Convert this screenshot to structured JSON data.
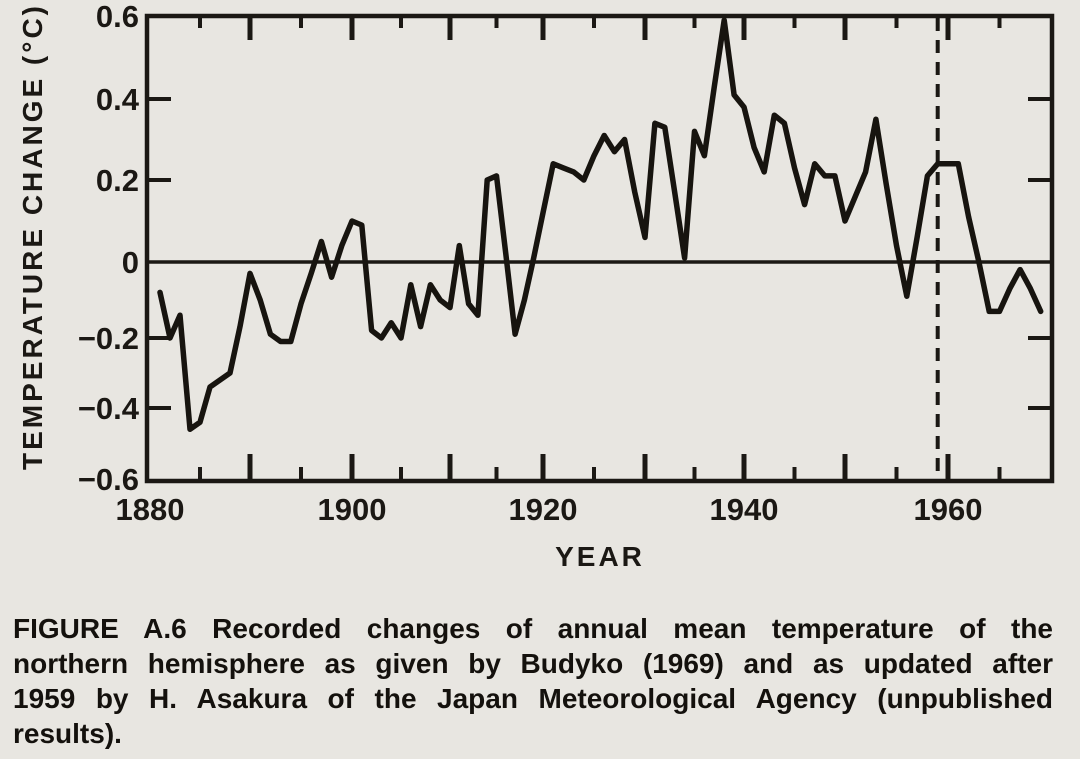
{
  "figure": {
    "caption_lines": [
      "FIGURE A.6  Recorded changes of annual mean temperature of the",
      "northern hemisphere as given by Budyko (1969) and as updated after",
      "1959 by H. Asakura of the Japan Meteorological Agency (unpublished",
      "results)."
    ]
  },
  "colors": {
    "paper": "#e8e6e1",
    "ink": "#1b1814"
  },
  "chart_data": {
    "type": "line",
    "xlabel": "YEAR",
    "ylabel": "TEMPERATURE CHANGE (°C)",
    "xlim": [
      1880,
      1970
    ],
    "ylim": [
      -0.6,
      0.6
    ],
    "grid": false,
    "zero_line": true,
    "x_tick_step_minor": 5,
    "x_tick_step_major": 10,
    "x_ticks_labeled": [
      1880,
      1900,
      1920,
      1940,
      1960
    ],
    "x_tick_labels": [
      "1880",
      "1900",
      "1920",
      "1940",
      "1960"
    ],
    "y_ticks": [
      0.6,
      0.4,
      0.2,
      0,
      -0.2,
      -0.4,
      -0.6
    ],
    "y_tick_labels": [
      "0.6",
      "0.4",
      "0.2",
      "0",
      "−0.2",
      "−0.4",
      "−0.6"
    ],
    "y_side_ticks": [
      0.4,
      0.2,
      -0.2,
      -0.4
    ],
    "annotations": [
      {
        "type": "vline",
        "x": 1959,
        "style": "dashed"
      }
    ],
    "series": [
      {
        "name": "northern-hemisphere-annual-mean-temperature-change",
        "x": [
          1881,
          1882,
          1883,
          1884,
          1885,
          1886,
          1887,
          1888,
          1889,
          1890,
          1891,
          1892,
          1893,
          1894,
          1895,
          1896,
          1897,
          1898,
          1899,
          1900,
          1901,
          1902,
          1903,
          1904,
          1905,
          1906,
          1907,
          1908,
          1909,
          1910,
          1911,
          1912,
          1913,
          1914,
          1915,
          1916,
          1917,
          1918,
          1919,
          1920,
          1921,
          1922,
          1923,
          1924,
          1925,
          1926,
          1927,
          1928,
          1929,
          1930,
          1931,
          1932,
          1933,
          1934,
          1935,
          1936,
          1937,
          1938,
          1939,
          1940,
          1941,
          1942,
          1943,
          1944,
          1945,
          1946,
          1947,
          1948,
          1949,
          1950,
          1951,
          1952,
          1953,
          1954,
          1955,
          1956,
          1957,
          1958,
          1959,
          1960,
          1961,
          1962,
          1963,
          1964,
          1965,
          1966,
          1967,
          1968,
          1969
        ],
        "values": [
          -0.08,
          -0.2,
          -0.14,
          -0.46,
          -0.44,
          -0.34,
          -0.32,
          -0.3,
          -0.17,
          -0.03,
          -0.1,
          -0.19,
          -0.21,
          -0.21,
          -0.11,
          -0.03,
          0.05,
          -0.04,
          0.04,
          0.1,
          0.09,
          -0.18,
          -0.2,
          -0.16,
          -0.2,
          -0.06,
          -0.17,
          -0.06,
          -0.1,
          -0.12,
          0.04,
          -0.11,
          -0.14,
          0.2,
          0.21,
          0.02,
          -0.19,
          -0.1,
          0.01,
          0.12,
          0.24,
          0.23,
          0.22,
          0.2,
          0.26,
          0.31,
          0.27,
          0.3,
          0.17,
          0.06,
          0.34,
          0.33,
          0.17,
          0.01,
          0.32,
          0.26,
          0.43,
          0.59,
          0.41,
          0.38,
          0.28,
          0.22,
          0.36,
          0.34,
          0.23,
          0.14,
          0.24,
          0.21,
          0.21,
          0.1,
          0.16,
          0.22,
          0.35,
          0.19,
          0.04,
          -0.09,
          0.06,
          0.21,
          0.24,
          0.24,
          0.24,
          0.11,
          0.0,
          -0.13,
          -0.13,
          -0.07,
          -0.02,
          -0.07,
          -0.13
        ]
      }
    ]
  }
}
